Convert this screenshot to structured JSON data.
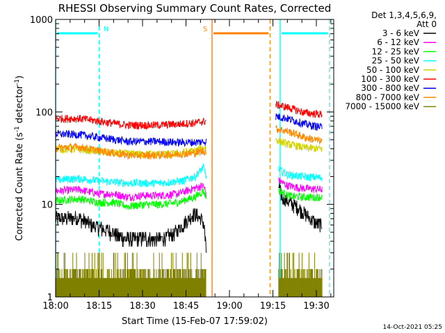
{
  "chart_data": {
    "type": "line",
    "title": "RHESSI Observing Summary Count Rates, Corrected",
    "xlabel": "Start Time (15-Feb-07 17:59:02)",
    "ylabel_main": "Corrected Count Rate (s",
    "ylabel_sup1": "-1",
    "ylabel_mid": " detector",
    "ylabel_sup2": "-1",
    "ylabel_end": ")",
    "y_scale": "log",
    "ylim": [
      1,
      1000
    ],
    "xlim_minutes": [
      0,
      96
    ],
    "x_ticks": [
      {
        "m": 0,
        "label": "18:00"
      },
      {
        "m": 15,
        "label": "18:15"
      },
      {
        "m": 30,
        "label": "18:30"
      },
      {
        "m": 45,
        "label": "18:45"
      },
      {
        "m": 60,
        "label": "19:00"
      },
      {
        "m": 75,
        "label": "19:15"
      },
      {
        "m": 90,
        "label": "19:30"
      }
    ],
    "y_ticks": [
      {
        "v": 1,
        "label": "1"
      },
      {
        "v": 10,
        "label": "10"
      },
      {
        "v": 100,
        "label": "100"
      },
      {
        "v": 1000,
        "label": "1000"
      }
    ],
    "legend": {
      "position": "right",
      "header1": "Det 1,3,4,5,6,9,",
      "header2": "Att 0"
    },
    "series": [
      {
        "name": "3 - 6 keV",
        "color": "#000000",
        "a": [
          [
            0,
            7
          ],
          [
            8,
            7.2
          ],
          [
            12,
            6
          ],
          [
            18,
            5.2
          ],
          [
            24,
            4.2
          ],
          [
            30,
            4.3
          ],
          [
            36,
            4.2
          ],
          [
            40,
            4.6
          ],
          [
            44,
            6
          ],
          [
            48,
            8
          ],
          [
            50,
            7
          ],
          [
            51,
            6.5
          ],
          [
            52,
            3
          ]
        ],
        "b": [
          [
            77,
            16
          ],
          [
            78,
            12
          ],
          [
            82,
            10
          ],
          [
            86,
            8
          ],
          [
            89,
            6.5
          ],
          [
            92,
            6
          ]
        ]
      },
      {
        "name": "6 - 12 keV",
        "color": "#ff00ff",
        "a": [
          [
            0,
            14
          ],
          [
            8,
            14.5
          ],
          [
            15,
            13
          ],
          [
            20,
            13
          ],
          [
            25,
            12
          ],
          [
            30,
            12.5
          ],
          [
            36,
            12.5
          ],
          [
            42,
            13
          ],
          [
            48,
            15
          ],
          [
            51,
            16
          ],
          [
            52,
            13
          ]
        ],
        "b": [
          [
            77,
            18
          ],
          [
            80,
            16
          ],
          [
            85,
            15
          ],
          [
            92,
            14.5
          ]
        ]
      },
      {
        "name": "12 - 25 keV",
        "color": "#00ff00",
        "a": [
          [
            0,
            11
          ],
          [
            8,
            11.5
          ],
          [
            15,
            10.5
          ],
          [
            20,
            10.5
          ],
          [
            25,
            9.5
          ],
          [
            30,
            10
          ],
          [
            36,
            10
          ],
          [
            42,
            10.5
          ],
          [
            48,
            12
          ],
          [
            51,
            14
          ],
          [
            52,
            12
          ]
        ],
        "b": [
          [
            77,
            14
          ],
          [
            80,
            12.5
          ],
          [
            85,
            12
          ],
          [
            92,
            12
          ]
        ]
      },
      {
        "name": "25 - 50 keV",
        "color": "#00ffff",
        "a": [
          [
            0,
            18.5
          ],
          [
            8,
            19
          ],
          [
            15,
            18
          ],
          [
            25,
            17
          ],
          [
            36,
            17
          ],
          [
            44,
            18
          ],
          [
            48,
            20
          ],
          [
            51,
            25
          ],
          [
            52,
            20
          ]
        ],
        "b": [
          [
            77,
            24
          ],
          [
            80,
            21
          ],
          [
            85,
            20
          ],
          [
            92,
            19.5
          ]
        ]
      },
      {
        "name": "50 - 100 keV",
        "color": "#d2d200",
        "a": [
          [
            0,
            40
          ],
          [
            10,
            39
          ],
          [
            20,
            36
          ],
          [
            30,
            35
          ],
          [
            40,
            35
          ],
          [
            48,
            38
          ],
          [
            52,
            42
          ]
        ],
        "b": [
          [
            76,
            50
          ],
          [
            80,
            45
          ],
          [
            86,
            41
          ],
          [
            92,
            40
          ]
        ]
      },
      {
        "name": "100 - 300 keV",
        "color": "#ff0000",
        "a": [
          [
            0,
            85
          ],
          [
            8,
            85
          ],
          [
            18,
            77
          ],
          [
            25,
            72
          ],
          [
            35,
            72
          ],
          [
            42,
            74
          ],
          [
            48,
            76
          ],
          [
            52,
            80
          ]
        ],
        "b": [
          [
            76,
            120
          ],
          [
            80,
            112
          ],
          [
            86,
            98
          ],
          [
            92,
            94
          ]
        ]
      },
      {
        "name": "300 - 800 keV",
        "color": "#0000ff",
        "a": [
          [
            0,
            58
          ],
          [
            8,
            57
          ],
          [
            15,
            53
          ],
          [
            25,
            48
          ],
          [
            35,
            48
          ],
          [
            42,
            47
          ],
          [
            48,
            47
          ],
          [
            52,
            48
          ]
        ],
        "b": [
          [
            76,
            90
          ],
          [
            80,
            85
          ],
          [
            86,
            74
          ],
          [
            92,
            68
          ]
        ]
      },
      {
        "name": "800 - 7000 keV",
        "color": "#ff8800",
        "a": [
          [
            0,
            41
          ],
          [
            8,
            42
          ],
          [
            15,
            38
          ],
          [
            25,
            34
          ],
          [
            35,
            34
          ],
          [
            42,
            35
          ],
          [
            48,
            36
          ],
          [
            52,
            38
          ]
        ],
        "b": [
          [
            76,
            66
          ],
          [
            80,
            62
          ],
          [
            86,
            53
          ],
          [
            92,
            48
          ]
        ]
      },
      {
        "name": "7000 - 15000 keV",
        "color": "#808000",
        "a": [
          [
            0,
            2
          ],
          [
            52,
            2
          ]
        ],
        "b": [
          [
            77,
            2
          ],
          [
            92,
            2
          ]
        ]
      }
    ],
    "annotations": [
      {
        "label": "N",
        "color": "#00ffff",
        "bar_from": 0.5,
        "bar_to": 14.5,
        "line_solid": 0,
        "line_dashed": 15,
        "at": 96,
        "start2": 77.5,
        "line2_dashed": 94.5,
        "bar2_from": 78,
        "bar2_to": 94
      },
      {
        "label": "S",
        "color": "#ff8000",
        "bar_from": 54.5,
        "bar_to": 73.5,
        "line_solid": 54,
        "line_dashed": 74
      }
    ],
    "footer_date": "14-Oct-2021 05:25"
  }
}
